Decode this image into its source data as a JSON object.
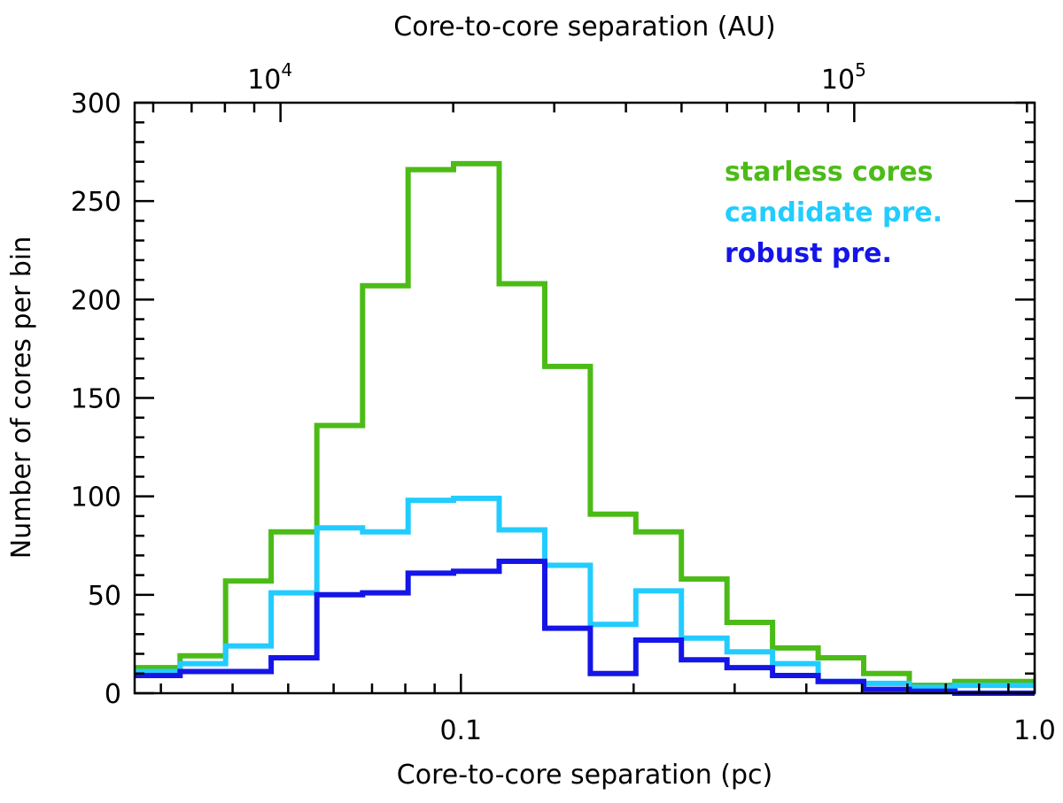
{
  "chart_data": {
    "type": "histogram-step",
    "xscale": "log",
    "xlim": [
      0.027,
      1.0
    ],
    "ylim": [
      0,
      300
    ],
    "xlabel": "Core-to-core separation (pc)",
    "ylabel": "Number of cores per bin",
    "top_xlabel": "Core-to-core separation (AU)",
    "x_tick_labels": [
      "0.1",
      "1.0"
    ],
    "y_tick_labels": [
      "0",
      "50",
      "100",
      "150",
      "200",
      "250",
      "300"
    ],
    "top_tick_labels": [
      {
        "base": "10",
        "exponent": "4",
        "au": 10000
      },
      {
        "base": "10",
        "exponent": "5",
        "au": 100000
      }
    ],
    "au_per_pc": 206265,
    "legend_position": "top-right",
    "bin_edges": [
      0.027,
      0.0324,
      0.0389,
      0.0467,
      0.0561,
      0.0674,
      0.0809,
      0.0971,
      0.1166,
      0.14,
      0.1681,
      0.2018,
      0.2423,
      0.2909,
      0.3493,
      0.4194,
      0.5035,
      0.6046,
      0.7259,
      0.8716,
      1.0
    ],
    "series": [
      {
        "name": "starless cores",
        "color": "#4cbb17",
        "values": [
          13,
          19,
          57,
          82,
          136,
          207,
          266,
          269,
          208,
          166,
          91,
          82,
          58,
          36,
          23,
          18,
          10,
          4,
          6,
          6
        ]
      },
      {
        "name": "candidate pre.",
        "color": "#22ccff",
        "values": [
          11,
          15,
          24,
          51,
          84,
          82,
          98,
          99,
          83,
          65,
          35,
          52,
          28,
          21,
          15,
          6,
          5,
          3,
          4,
          4
        ]
      },
      {
        "name": "robust pre.",
        "color": "#1515e8",
        "values": [
          9,
          11,
          11,
          18,
          50,
          51,
          61,
          62,
          67,
          33,
          10,
          27,
          17,
          13,
          9,
          6,
          2,
          1,
          0,
          0
        ]
      }
    ]
  }
}
